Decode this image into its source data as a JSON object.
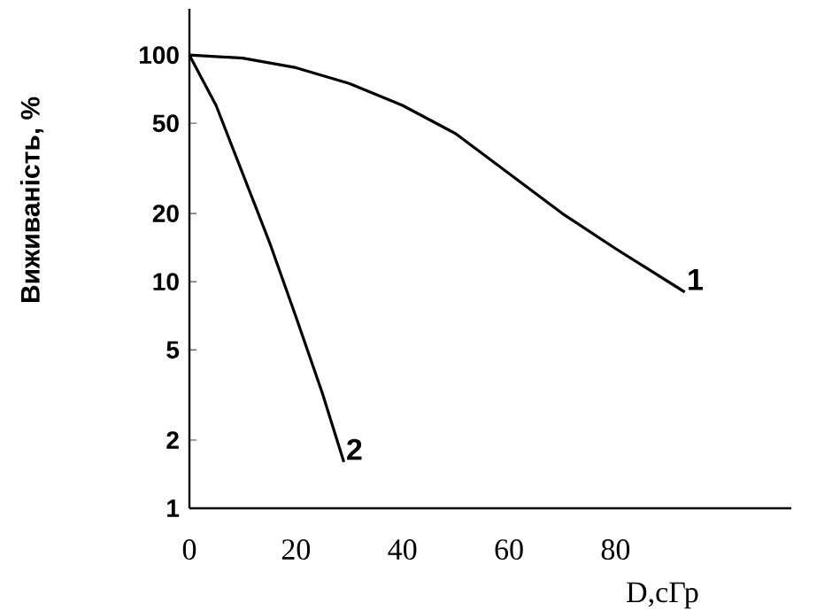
{
  "chart_data": {
    "type": "line",
    "xlabel": "D,сГр",
    "ylabel": "Виживаність, %",
    "log": "y",
    "xlim": [
      0,
      113
    ],
    "ylim": [
      1,
      160
    ],
    "xticks": [
      0,
      20,
      40,
      60,
      80
    ],
    "yticks": [
      1,
      2,
      5,
      10,
      20,
      50,
      100
    ],
    "grid": false,
    "legend": false,
    "marker": "none",
    "line_style": "solid",
    "series": [
      {
        "name": "1",
        "color": "#000000",
        "x": [
          0,
          10,
          20,
          30,
          40,
          50,
          60,
          70,
          80,
          93
        ],
        "values": [
          100,
          97,
          88,
          75,
          60,
          45,
          30,
          20,
          14,
          9
        ]
      },
      {
        "name": "2",
        "color": "#000000",
        "x": [
          0,
          5,
          10,
          15,
          20,
          25,
          29
        ],
        "values": [
          100,
          60,
          30,
          15,
          7,
          3.2,
          1.6
        ]
      }
    ]
  }
}
